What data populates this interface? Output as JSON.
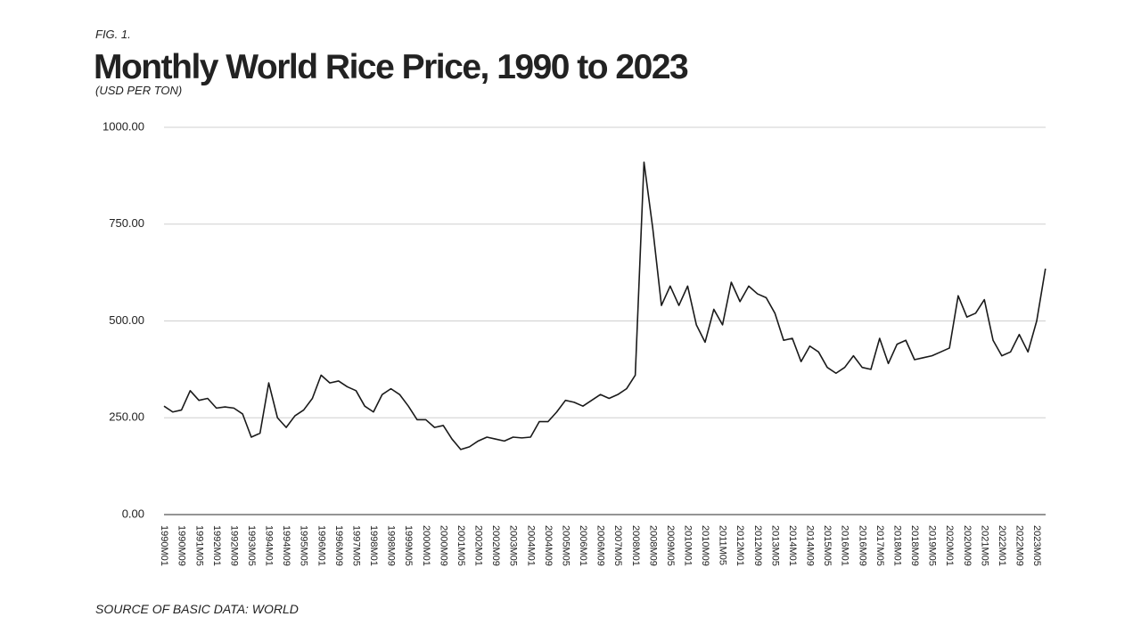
{
  "chart_data": {
    "type": "line",
    "fig_label": "FIG. 1.",
    "title": "Monthly World Rice Price, 1990 to 2023",
    "subtitle": "(USD PER TON)",
    "source": "SOURCE OF BASIC DATA: WORLD",
    "categories": [
      "1990M01",
      null,
      "1990M09",
      null,
      "1991M05",
      null,
      "1992M01",
      null,
      "1992M09",
      null,
      "1993M05",
      null,
      "1994M01",
      null,
      "1994M09",
      null,
      "1995M05",
      null,
      "1996M01",
      null,
      "1996M09",
      null,
      "1997M05",
      null,
      "1998M01",
      null,
      "1998M09",
      null,
      "1999M05",
      null,
      "2000M01",
      null,
      "2000M09",
      null,
      "2001M05",
      null,
      "2002M01",
      null,
      "2002M09",
      null,
      "2003M05",
      null,
      "2004M01",
      null,
      "2004M09",
      null,
      "2005M05",
      null,
      "2006M01",
      null,
      "2006M09",
      null,
      "2007M05",
      null,
      "2008M01",
      null,
      "2008M09",
      null,
      "2009M05",
      null,
      "2010M01",
      null,
      "2010M09",
      null,
      "2011M05",
      null,
      "2012M01",
      null,
      "2012M09",
      null,
      "2013M05",
      null,
      "2014M01",
      null,
      "2014M09",
      null,
      "2015M05",
      null,
      "2016M01",
      null,
      "2016M09",
      null,
      "2017M05",
      null,
      "2018M01",
      null,
      "2018M09",
      null,
      "2019M05",
      null,
      "2020M01",
      null,
      "2020M09",
      null,
      "2021M05",
      null,
      "2022M01",
      null,
      "2022M09",
      null,
      "2023M05",
      null
    ],
    "values": [
      280,
      265,
      270,
      320,
      295,
      300,
      275,
      278,
      275,
      260,
      200,
      210,
      340,
      250,
      225,
      255,
      270,
      300,
      360,
      340,
      345,
      330,
      320,
      280,
      265,
      310,
      325,
      310,
      280,
      245,
      245,
      225,
      230,
      195,
      168,
      175,
      190,
      200,
      195,
      190,
      200,
      198,
      200,
      240,
      240,
      265,
      295,
      290,
      280,
      295,
      310,
      300,
      310,
      325,
      360,
      910,
      740,
      540,
      590,
      540,
      590,
      490,
      445,
      530,
      490,
      600,
      550,
      590,
      570,
      560,
      520,
      450,
      455,
      395,
      435,
      420,
      380,
      365,
      380,
      410,
      380,
      375,
      455,
      390,
      440,
      450,
      400,
      405,
      410,
      420,
      430,
      565,
      510,
      520,
      555,
      450,
      410,
      420,
      465,
      420,
      500,
      635
    ],
    "color": "#1a1a1a",
    "ylim": [
      0,
      1000
    ],
    "yticks": [
      {
        "value": 0,
        "label": "0.00"
      },
      {
        "value": 250,
        "label": "250.00"
      },
      {
        "value": 500,
        "label": "500.00"
      },
      {
        "value": 750,
        "label": "750.00"
      },
      {
        "value": 1000,
        "label": "1000.00"
      }
    ],
    "grid": true
  }
}
